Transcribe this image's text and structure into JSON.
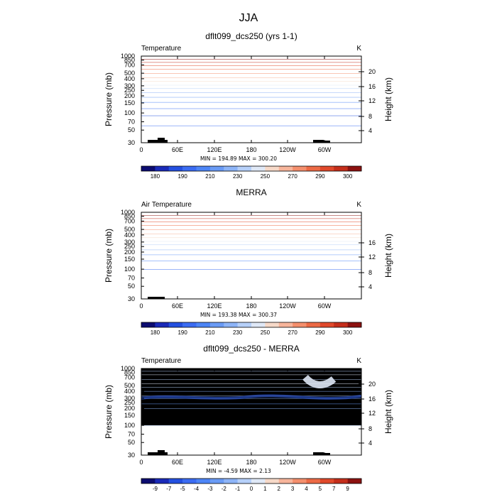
{
  "figure": {
    "season_title": "JJA"
  },
  "chart_data": [
    {
      "type": "heatmap",
      "title": "dflt099_dcs250 (yrs 1-1)",
      "variable_label": "Temperature",
      "units_label": "K",
      "ylabel_left": "Pressure (mb)",
      "ylabel_right": "Height (km)",
      "x_ticks": [
        "0",
        "60E",
        "120E",
        "180",
        "120W",
        "60W"
      ],
      "pressure_ticks": [
        "30",
        "50",
        "70",
        "100",
        "150",
        "200",
        "250",
        "300",
        "400",
        "500",
        "700",
        "850",
        "1000"
      ],
      "height_ticks": [
        "20",
        "16",
        "12",
        "8",
        "4"
      ],
      "stats_text": "MIN = 194.89   MAX = 300.20",
      "min": 194.89,
      "max": 300.2,
      "top_pressure": 30,
      "colorbar_labels": [
        "180",
        "190",
        "210",
        "230",
        "250",
        "270",
        "290",
        "300"
      ],
      "colorbar_levels": [
        180,
        185,
        190,
        200,
        210,
        220,
        230,
        240,
        250,
        260,
        270,
        280,
        290,
        295,
        300
      ],
      "colorbar_colors": [
        "#0c0c70",
        "#1a2ab8",
        "#2450e0",
        "#3b6cf2",
        "#4d85f6",
        "#6a9bf5",
        "#8db4f7",
        "#b6d0f9",
        "#dfe8f6",
        "#f6d9c8",
        "#f7b59b",
        "#f48f6d",
        "#ec6a45",
        "#e0492b",
        "#c42e1b",
        "#8c1210"
      ],
      "profile": [
        [
          30,
          "#d3e1f8"
        ],
        [
          60,
          "#8db4f7"
        ],
        [
          90,
          "#3b6cf2"
        ],
        [
          120,
          "#2450e0"
        ],
        [
          155,
          "#3b6cf2"
        ],
        [
          190,
          "#4d85f6"
        ],
        [
          230,
          "#6a9bf5"
        ],
        [
          270,
          "#8db4f7"
        ],
        [
          310,
          "#b6d0f9"
        ],
        [
          360,
          "#dfe8f6"
        ],
        [
          420,
          "#f6d9c8"
        ],
        [
          500,
          "#f7b59b"
        ],
        [
          590,
          "#f48f6d"
        ],
        [
          680,
          "#ec6a45"
        ],
        [
          780,
          "#e0492b"
        ],
        [
          880,
          "#c42e1b"
        ],
        [
          1000,
          "#8c1210"
        ]
      ]
    },
    {
      "type": "heatmap",
      "title": "MERRA",
      "variable_label": "Air Temperature",
      "units_label": "K",
      "ylabel_left": "Pressure (mb)",
      "ylabel_right": "Height (km)",
      "x_ticks": [
        "0",
        "60E",
        "120E",
        "180",
        "120W",
        "60W"
      ],
      "pressure_ticks": [
        "30",
        "50",
        "70",
        "100",
        "150",
        "200",
        "250",
        "300",
        "400",
        "500",
        "700",
        "850",
        "1000"
      ],
      "height_ticks": [
        "16",
        "12",
        "8",
        "4"
      ],
      "stats_text": "MIN = 193.38   MAX = 300.37",
      "min": 193.38,
      "max": 300.37,
      "top_pressure": 100,
      "colorbar_labels": [
        "180",
        "190",
        "210",
        "230",
        "250",
        "270",
        "290",
        "300"
      ],
      "colorbar_levels": [
        180,
        185,
        190,
        200,
        210,
        220,
        230,
        240,
        250,
        260,
        270,
        280,
        290,
        295,
        300
      ],
      "colorbar_colors": [
        "#0c0c70",
        "#1a2ab8",
        "#2450e0",
        "#3b6cf2",
        "#4d85f6",
        "#6a9bf5",
        "#8db4f7",
        "#b6d0f9",
        "#dfe8f6",
        "#f6d9c8",
        "#f7b59b",
        "#f48f6d",
        "#ec6a45",
        "#e0492b",
        "#c42e1b",
        "#8c1210"
      ],
      "profile": [
        [
          100,
          "#2450e0"
        ],
        [
          140,
          "#3b6cf2"
        ],
        [
          180,
          "#4d85f6"
        ],
        [
          220,
          "#6a9bf5"
        ],
        [
          270,
          "#8db4f7"
        ],
        [
          310,
          "#b6d0f9"
        ],
        [
          360,
          "#dfe8f6"
        ],
        [
          420,
          "#f6d9c8"
        ],
        [
          500,
          "#f7b59b"
        ],
        [
          590,
          "#f48f6d"
        ],
        [
          680,
          "#ec6a45"
        ],
        [
          780,
          "#e0492b"
        ],
        [
          880,
          "#c42e1b"
        ],
        [
          1000,
          "#8c1210"
        ]
      ]
    },
    {
      "type": "heatmap",
      "title": "dflt099_dcs250 - MERRA",
      "variable_label": "Temperature",
      "units_label": "K",
      "ylabel_left": "Pressure (mb)",
      "ylabel_right": "Height (km)",
      "x_ticks": [
        "0",
        "60E",
        "120E",
        "180",
        "120W",
        "60W"
      ],
      "pressure_ticks": [
        "30",
        "50",
        "70",
        "100",
        "150",
        "200",
        "250",
        "300",
        "400",
        "500",
        "700",
        "850",
        "1000"
      ],
      "height_ticks": [
        "20",
        "16",
        "12",
        "8",
        "4"
      ],
      "stats_text": "MIN =   -4.59   MAX =     2.13",
      "min": -4.59,
      "max": 2.13,
      "top_pressure": 30,
      "masked_above_pressure": 100,
      "mask_color": "#000000",
      "colorbar_labels": [
        "-9",
        "-7",
        "-5",
        "-4",
        "-3",
        "-2",
        "-1",
        "0",
        "1",
        "2",
        "3",
        "4",
        "5",
        "7",
        "9"
      ],
      "colorbar_levels": [
        -9,
        -7,
        -5,
        -4,
        -3,
        -2,
        -1,
        0,
        1,
        2,
        3,
        4,
        5,
        7,
        9
      ],
      "colorbar_colors": [
        "#0c0c70",
        "#1a2ab8",
        "#2450e0",
        "#3b6cf2",
        "#4d85f6",
        "#6a9bf5",
        "#8db4f7",
        "#b6d0f9",
        "#dfe8f6",
        "#f6d9c8",
        "#f7b59b",
        "#f48f6d",
        "#ec6a45",
        "#e0492b",
        "#c42e1b",
        "#8c1210"
      ],
      "profile": [
        [
          100,
          "#dfe8f6"
        ],
        [
          200,
          "#b6d0f9"
        ],
        [
          240,
          "#8db4f7"
        ],
        [
          300,
          "#6a9bf5"
        ],
        [
          330,
          "#8db4f7"
        ],
        [
          400,
          "#b6d0f9"
        ],
        [
          470,
          "#8db4f7"
        ],
        [
          540,
          "#b6d0f9"
        ],
        [
          640,
          "#dfe8f6"
        ],
        [
          780,
          "#b6d0f9"
        ],
        [
          900,
          "#dfe8f6"
        ],
        [
          1000,
          "#b6d0f9"
        ]
      ]
    }
  ]
}
